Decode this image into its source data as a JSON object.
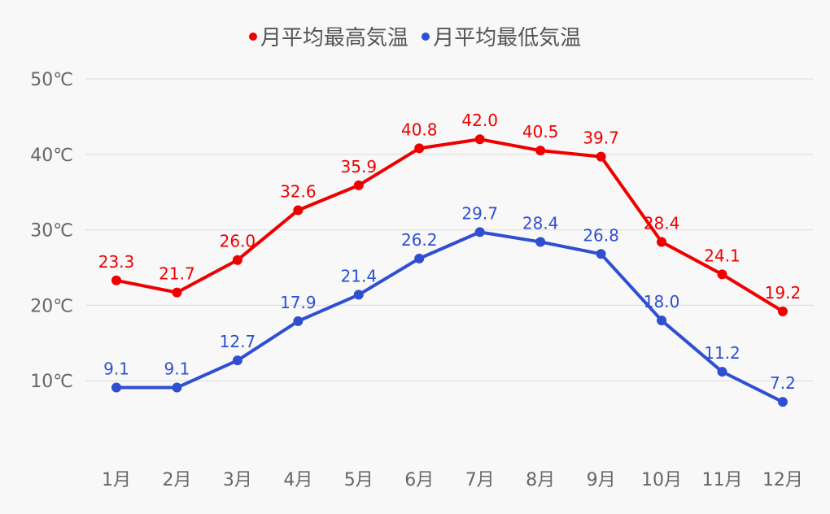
{
  "chart_data": {
    "type": "line",
    "title": "",
    "categories": [
      "1月",
      "2月",
      "3月",
      "4月",
      "5月",
      "6月",
      "7月",
      "8月",
      "9月",
      "10月",
      "11月",
      "12月"
    ],
    "series": [
      {
        "name": "月平均最高気温",
        "color": "#ee0000",
        "values": [
          23.3,
          21.7,
          26.0,
          32.6,
          35.9,
          40.8,
          42.0,
          40.5,
          39.7,
          28.4,
          24.1,
          19.2
        ]
      },
      {
        "name": "月平均最低気温",
        "color": "#2f4fd0",
        "values": [
          9.1,
          9.1,
          12.7,
          17.9,
          21.4,
          26.2,
          29.7,
          28.4,
          26.8,
          18.0,
          11.2,
          7.2
        ]
      }
    ],
    "yticks": [
      10,
      20,
      30,
      40,
      50
    ],
    "ytick_labels": [
      "10℃",
      "20℃",
      "30℃",
      "40℃",
      "50℃"
    ],
    "ylim": [
      0,
      50
    ],
    "grid": true,
    "legend_position": "top",
    "data_labels": true
  }
}
